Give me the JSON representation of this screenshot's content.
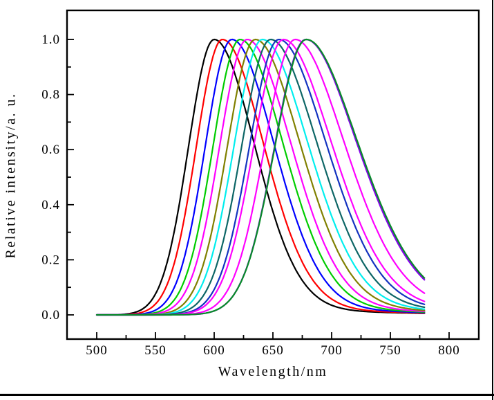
{
  "figure": {
    "background": "#ffffff",
    "frame_color": "#000000",
    "doc_border_color": "#000000"
  },
  "chart_data": {
    "type": "line",
    "title": "",
    "xlabel": "Wavelength/nm",
    "ylabel": "Relative intensity/a. u.",
    "grid": false,
    "legend": "none",
    "xlim": [
      474.7,
      825.3
    ],
    "ylim": [
      -0.088,
      1.105
    ],
    "x_data_range_nm": [
      500,
      780
    ],
    "x_ticks": [
      500,
      550,
      600,
      650,
      700,
      750,
      800
    ],
    "x_tick_labels": [
      "500",
      "550",
      "600",
      "650",
      "700",
      "750",
      "800"
    ],
    "x_minor_ticks": [
      525,
      575,
      625,
      675,
      725,
      775
    ],
    "y_ticks": [
      0.0,
      0.2,
      0.4,
      0.6,
      0.8,
      1.0
    ],
    "y_tick_labels": [
      "0.0",
      "0.2",
      "0.4",
      "0.6",
      "0.8",
      "1.0"
    ],
    "y_minor_ticks": [
      0.1,
      0.3,
      0.5,
      0.7,
      0.9
    ],
    "peak_intensity_normalized": 1.0,
    "series": [
      {
        "name": "spectrum-black-600nm",
        "color": "#000000",
        "peak_nm": 600,
        "sigma_left_nm": 22.0,
        "sigma_right_nm": 36.0,
        "red_tail_mix": 0.15
      },
      {
        "name": "spectrum-red-607nm",
        "color": "#ff0000",
        "peak_nm": 607,
        "sigma_left_nm": 22.4,
        "sigma_right_nm": 37.0,
        "red_tail_mix": 0.16
      },
      {
        "name": "spectrum-blue-615nm",
        "color": "#0000ff",
        "peak_nm": 615,
        "sigma_left_nm": 22.8,
        "sigma_right_nm": 38.0,
        "red_tail_mix": 0.17
      },
      {
        "name": "spectrum-green-622nm",
        "color": "#00cc00",
        "peak_nm": 622,
        "sigma_left_nm": 23.2,
        "sigma_right_nm": 38.9,
        "red_tail_mix": 0.18
      },
      {
        "name": "spectrum-magenta-628nm",
        "color": "#ff00ff",
        "peak_nm": 628,
        "sigma_left_nm": 23.6,
        "sigma_right_nm": 39.8,
        "red_tail_mix": 0.19
      },
      {
        "name": "spectrum-darkyellow-635nm",
        "color": "#808000",
        "peak_nm": 635,
        "sigma_left_nm": 24.0,
        "sigma_right_nm": 40.7,
        "red_tail_mix": 0.2
      },
      {
        "name": "spectrum-cyan-641nm",
        "color": "#00eeee",
        "peak_nm": 641,
        "sigma_left_nm": 24.4,
        "sigma_right_nm": 41.6,
        "red_tail_mix": 0.21
      },
      {
        "name": "spectrum-darkcyan-648nm",
        "color": "#0d6666",
        "peak_nm": 648,
        "sigma_left_nm": 24.8,
        "sigma_right_nm": 42.5,
        "red_tail_mix": 0.22
      },
      {
        "name": "spectrum-navy-655nm",
        "color": "#1433c0",
        "peak_nm": 655,
        "sigma_left_nm": 25.2,
        "sigma_right_nm": 43.4,
        "red_tail_mix": 0.23
      },
      {
        "name": "spectrum-magenta-659nm",
        "color": "#ff00ff",
        "peak_nm": 659,
        "sigma_left_nm": 25.6,
        "sigma_right_nm": 44.3,
        "red_tail_mix": 0.25
      },
      {
        "name": "spectrum-magenta-669nm",
        "color": "#ff00ff",
        "peak_nm": 669,
        "sigma_left_nm": 26.2,
        "sigma_right_nm": 45.5,
        "red_tail_mix": 0.27
      },
      {
        "name": "spectrum-violet-678nm",
        "color": "#8800ee",
        "peak_nm": 678,
        "sigma_left_nm": 26.8,
        "sigma_right_nm": 47.5,
        "red_tail_mix": 0.3
      },
      {
        "name": "spectrum-darkgreen-678nm",
        "color": "#078c28",
        "peak_nm": 678.5,
        "sigma_left_nm": 27.0,
        "sigma_right_nm": 48.0,
        "red_tail_mix": 0.3
      }
    ]
  }
}
